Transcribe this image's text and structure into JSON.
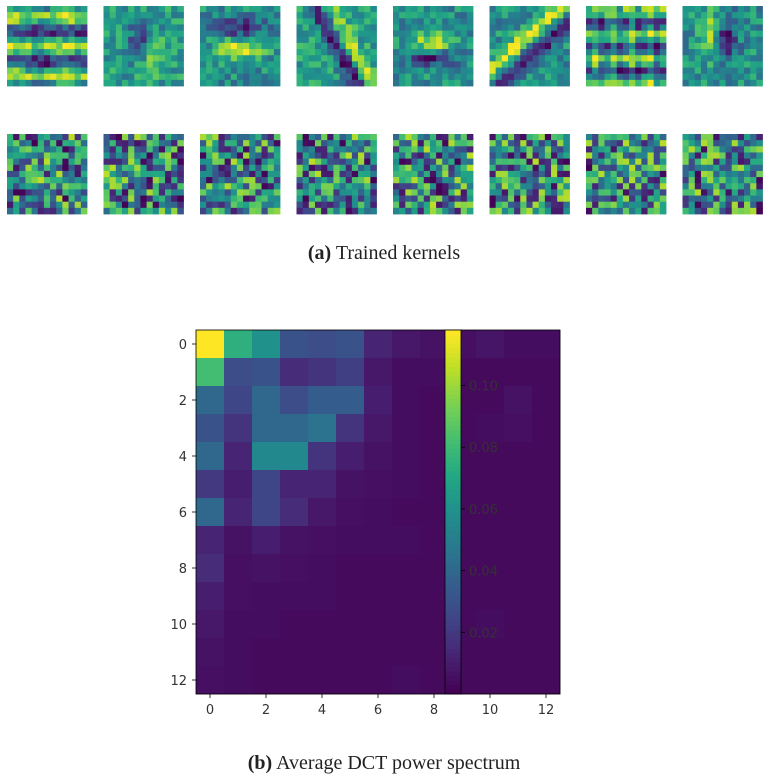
{
  "caption_a": {
    "label": "(a)",
    "text": " Trained kernels"
  },
  "caption_b": {
    "label": "(b)",
    "text": " Average DCT power spectrum"
  },
  "kernels": {
    "rows": 2,
    "cols": 8,
    "grid": 13,
    "colormap": "viridis",
    "descriptions": [
      "horizontal-stripes",
      "center-blob",
      "horizontal-edge",
      "diagonal-line",
      "horizontal-blob",
      "diagonal-edge",
      "horizontal-stripes-2",
      "vertical-edge",
      "noise",
      "noise",
      "noise",
      "noise",
      "noise",
      "noise",
      "noise",
      "noise"
    ]
  },
  "chart_data": {
    "type": "heatmap",
    "title": "Average DCT power spectrum",
    "xlabel": "",
    "ylabel": "",
    "size": 13,
    "xticks": [
      0,
      2,
      4,
      6,
      8,
      10,
      12
    ],
    "yticks": [
      0,
      2,
      4,
      6,
      8,
      10,
      12
    ],
    "colorbar": {
      "min": 0,
      "max": 0.118,
      "ticks": [
        0.02,
        0.04,
        0.06,
        0.08,
        0.1
      ],
      "tick_labels": [
        "0.02",
        "0.04",
        "0.06",
        "0.08",
        "0.10"
      ]
    },
    "colormap": "viridis",
    "values": [
      [
        0.118,
        0.075,
        0.06,
        0.03,
        0.028,
        0.03,
        0.012,
        0.008,
        0.006,
        0.005,
        0.007,
        0.004,
        0.004
      ],
      [
        0.082,
        0.028,
        0.03,
        0.015,
        0.018,
        0.022,
        0.008,
        0.004,
        0.004,
        0.003,
        0.003,
        0.003,
        0.003
      ],
      [
        0.04,
        0.025,
        0.04,
        0.028,
        0.035,
        0.035,
        0.01,
        0.004,
        0.003,
        0.003,
        0.003,
        0.006,
        0.003
      ],
      [
        0.03,
        0.018,
        0.04,
        0.04,
        0.045,
        0.018,
        0.008,
        0.004,
        0.003,
        0.003,
        0.004,
        0.005,
        0.003
      ],
      [
        0.04,
        0.012,
        0.055,
        0.055,
        0.018,
        0.01,
        0.006,
        0.004,
        0.003,
        0.003,
        0.003,
        0.003,
        0.003
      ],
      [
        0.02,
        0.01,
        0.025,
        0.012,
        0.012,
        0.006,
        0.005,
        0.004,
        0.003,
        0.003,
        0.003,
        0.003,
        0.003
      ],
      [
        0.04,
        0.012,
        0.025,
        0.015,
        0.008,
        0.005,
        0.004,
        0.003,
        0.003,
        0.003,
        0.003,
        0.003,
        0.003
      ],
      [
        0.012,
        0.006,
        0.01,
        0.006,
        0.005,
        0.004,
        0.004,
        0.004,
        0.003,
        0.003,
        0.003,
        0.003,
        0.003
      ],
      [
        0.015,
        0.005,
        0.006,
        0.005,
        0.004,
        0.003,
        0.003,
        0.003,
        0.003,
        0.003,
        0.003,
        0.003,
        0.003
      ],
      [
        0.01,
        0.005,
        0.004,
        0.004,
        0.004,
        0.003,
        0.003,
        0.003,
        0.003,
        0.003,
        0.003,
        0.003,
        0.003
      ],
      [
        0.008,
        0.004,
        0.004,
        0.003,
        0.003,
        0.003,
        0.003,
        0.003,
        0.003,
        0.003,
        0.004,
        0.003,
        0.003
      ],
      [
        0.006,
        0.004,
        0.003,
        0.003,
        0.003,
        0.003,
        0.003,
        0.003,
        0.003,
        0.003,
        0.003,
        0.003,
        0.003
      ],
      [
        0.005,
        0.004,
        0.003,
        0.003,
        0.003,
        0.003,
        0.003,
        0.004,
        0.003,
        0.003,
        0.003,
        0.003,
        0.003
      ]
    ]
  }
}
